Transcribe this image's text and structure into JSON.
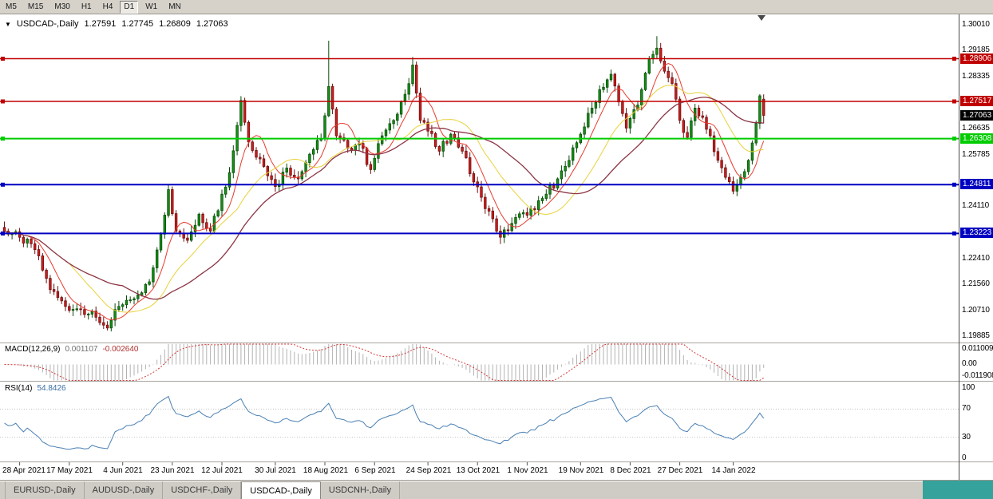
{
  "toolbar": {
    "timeframes": [
      "M5",
      "M15",
      "M30",
      "H1",
      "H4",
      "D1",
      "W1",
      "MN"
    ],
    "active_timeframe": "D1"
  },
  "chart_header": {
    "expander": "▼",
    "symbol_period": "USDCAD-,Daily",
    "open": "1.27591",
    "high": "1.27745",
    "low": "1.26809",
    "close": "1.27063"
  },
  "price_axis": {
    "labels": [
      "1.30010",
      "1.29185",
      "1.28335",
      "1.26635",
      "1.25785",
      "1.24110",
      "1.22410",
      "1.21560",
      "1.20710",
      "1.19885"
    ],
    "current_price_label": "1.27063",
    "current_price_bg": "#000000"
  },
  "indicator_panels": {
    "macd": {
      "name": "MACD(12,26,9)",
      "main_value": "0.001107",
      "signal_value": "-0.002640",
      "axis_labels": [
        "0.011009",
        "0.00",
        "-0.011908"
      ]
    },
    "rsi": {
      "name": "RSI(14)",
      "value": "54.8426",
      "axis_labels": [
        "100",
        "70",
        "30",
        "0"
      ]
    }
  },
  "tabs": {
    "items": [
      "EURUSD-,Daily",
      "AUDUSD-,Daily",
      "USDCHF-,Daily",
      "USDCAD-,Daily",
      "USDCNH-,Daily"
    ],
    "active": "USDCAD-,Daily"
  },
  "ui": {
    "window_bg": "#d6d2ca",
    "desktop_corner_color": "#35a29b"
  },
  "chart_data": {
    "type": "candlestick",
    "title": "USDCAD-,Daily",
    "timeframe": "Daily",
    "current_bar": {
      "open": 1.27591,
      "high": 1.27745,
      "low": 1.26809,
      "close": 1.27063
    },
    "current_price": 1.27063,
    "y_axis_range": [
      1.19885,
      1.3001
    ],
    "x_labels": [
      "28 Apr 2021",
      "17 May 2021",
      "4 Jun 2021",
      "23 Jun 2021",
      "12 Jul 2021",
      "30 Jul 2021",
      "18 Aug 2021",
      "6 Sep 2021",
      "24 Sep 2021",
      "13 Oct 2021",
      "1 Nov 2021",
      "19 Nov 2021",
      "8 Dec 2021",
      "27 Dec 2021",
      "14 Jan 2022"
    ],
    "x_label_bar_indices": [
      4,
      17,
      31,
      44,
      57,
      71,
      84,
      97,
      111,
      124,
      137,
      151,
      164,
      177,
      191
    ],
    "horizontal_levels": [
      {
        "label": "1.28906",
        "price": 1.28906,
        "color": "#c00000",
        "role": "resistance"
      },
      {
        "label": "1.27517",
        "price": 1.27517,
        "color": "#c00000",
        "role": "resistance"
      },
      {
        "label": "1.26308",
        "price": 1.26308,
        "color": "#00cc00",
        "role": "support"
      },
      {
        "label": "1.24811",
        "price": 1.24811,
        "color": "#0000c0",
        "role": "support"
      },
      {
        "label": "1.23223",
        "price": 1.23223,
        "color": "#0000c0",
        "role": "support"
      }
    ],
    "series_anchors_close": [
      [
        0,
        1.233
      ],
      [
        4,
        1.231
      ],
      [
        8,
        1.227
      ],
      [
        12,
        1.214
      ],
      [
        16,
        1.2085
      ],
      [
        20,
        1.2075
      ],
      [
        24,
        1.205
      ],
      [
        27,
        1.2015
      ],
      [
        30,
        1.2085
      ],
      [
        34,
        1.211
      ],
      [
        38,
        1.2165
      ],
      [
        41,
        1.232
      ],
      [
        43,
        1.2465
      ],
      [
        45,
        1.233
      ],
      [
        48,
        1.23
      ],
      [
        51,
        1.2385
      ],
      [
        54,
        1.233
      ],
      [
        57,
        1.245
      ],
      [
        59,
        1.252
      ],
      [
        62,
        1.2755
      ],
      [
        64,
        1.262
      ],
      [
        67,
        1.2565
      ],
      [
        69,
        1.251
      ],
      [
        71,
        1.2475
      ],
      [
        74,
        1.2535
      ],
      [
        77,
        1.25
      ],
      [
        80,
        1.258
      ],
      [
        83,
        1.263
      ],
      [
        85,
        1.28
      ],
      [
        87,
        1.264
      ],
      [
        90,
        1.26
      ],
      [
        93,
        1.2615
      ],
      [
        96,
        1.253
      ],
      [
        99,
        1.264
      ],
      [
        102,
        1.269
      ],
      [
        105,
        1.2775
      ],
      [
        107,
        1.287
      ],
      [
        109,
        1.269
      ],
      [
        111,
        1.2655
      ],
      [
        114,
        1.259
      ],
      [
        117,
        1.2645
      ],
      [
        120,
        1.259
      ],
      [
        123,
        1.249
      ],
      [
        125,
        1.244
      ],
      [
        128,
        1.237
      ],
      [
        130,
        1.231
      ],
      [
        133,
        1.2355
      ],
      [
        136,
        1.239
      ],
      [
        139,
        1.24
      ],
      [
        142,
        1.245
      ],
      [
        145,
        1.25
      ],
      [
        148,
        1.256
      ],
      [
        151,
        1.2645
      ],
      [
        154,
        1.273
      ],
      [
        156,
        1.279
      ],
      [
        159,
        1.284
      ],
      [
        161,
        1.275
      ],
      [
        163,
        1.2665
      ],
      [
        166,
        1.274
      ],
      [
        169,
        1.289
      ],
      [
        171,
        1.2925
      ],
      [
        173,
        1.285
      ],
      [
        175,
        1.281
      ],
      [
        177,
        1.269
      ],
      [
        179,
        1.2635
      ],
      [
        181,
        1.273
      ],
      [
        183,
        1.27
      ],
      [
        185,
        1.264
      ],
      [
        187,
        1.256
      ],
      [
        189,
        1.2505
      ],
      [
        191,
        1.246
      ],
      [
        193,
        1.2505
      ],
      [
        195,
        1.256
      ],
      [
        197,
        1.268
      ],
      [
        198,
        1.277
      ],
      [
        199,
        1.27063
      ]
    ],
    "wick_extreme_highs": [
      [
        85,
        1.2949
      ],
      [
        107,
        1.2896
      ],
      [
        171,
        1.2964
      ]
    ],
    "wick_extreme_lows": [
      [
        27,
        1.2007
      ],
      [
        130,
        1.2288
      ],
      [
        191,
        1.245
      ]
    ],
    "indicators": {
      "macd": {
        "fast": 12,
        "slow": 26,
        "signal": 9,
        "main": 0.001107,
        "signal_value": -0.00264
      },
      "rsi": {
        "period": 14,
        "value": 54.8426,
        "levels": [
          70,
          30
        ]
      }
    },
    "colors": {
      "candle_up": "#159015",
      "candle_up_border": "#0a4d0a",
      "candle_down": "#cf1d1d",
      "candle_down_border": "#6e0f0f",
      "ma_fast": "#e93a2e",
      "ma_mid": "#e8d23a",
      "ma_slow": "#8c3545",
      "macd_histogram": "#b2b2b2",
      "macd_signal": "#d23a3a",
      "rsi_line": "#4a80b4",
      "level_red": "#c00000",
      "level_green": "#00cc00",
      "level_blue": "#0000c0"
    }
  }
}
